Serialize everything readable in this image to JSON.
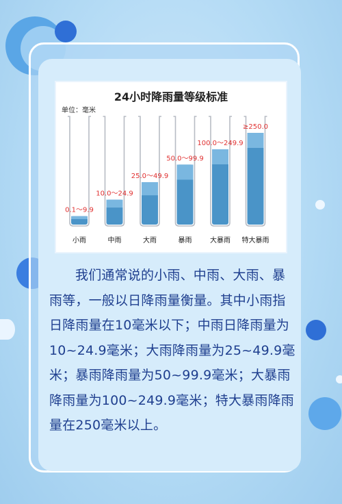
{
  "chart_data": {
    "type": "bar",
    "title": "24小时降雨量等级标准",
    "unit_label": "单位：毫米",
    "categories": [
      "小雨",
      "中雨",
      "大雨",
      "暴雨",
      "大暴雨",
      "特大暴雨"
    ],
    "range_labels": [
      "0.1～9.9",
      "10.0～24.9",
      "25.0～49.9",
      "50.0～99.9",
      "100.0～249.9",
      "≥250.0"
    ],
    "values": [
      9.9,
      24.9,
      49.9,
      99.9,
      249.9,
      250
    ],
    "fill_levels": [
      0.09,
      0.24,
      0.4,
      0.56,
      0.7,
      0.85
    ],
    "colors": {
      "bar": "#4a94c8",
      "bar_top": "#7ab7e0",
      "label": "#e03030",
      "tube": "#b7bcc4"
    }
  },
  "text": {
    "paragraph": "我们通常说的小雨、中雨、大雨、暴雨等，一般以日降雨量衡量。其中小雨指日降雨量在10毫米以下；中雨日降雨量为10~24.9毫米；大雨降雨量为25~49.9毫米；暴雨降雨量为50~99.9毫米；大暴雨降雨量为100~249.9毫米；特大暴雨降雨量在250毫米以上。"
  }
}
